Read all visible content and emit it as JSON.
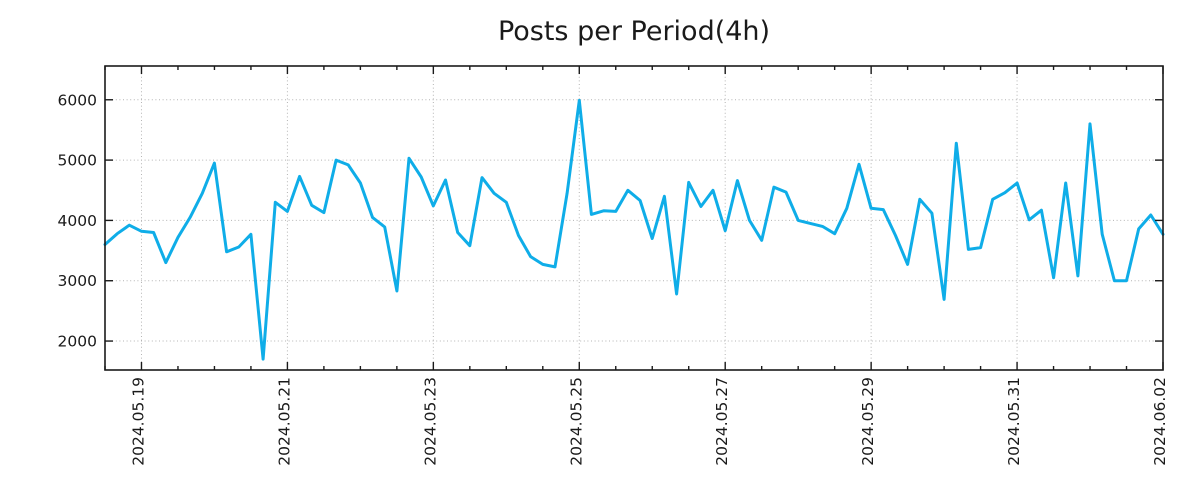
{
  "chart_data": {
    "type": "line",
    "title": "Posts per Period(4h)",
    "series": [
      {
        "name": "posts",
        "values": [
          3600,
          3780,
          3920,
          3820,
          3800,
          3300,
          3720,
          4050,
          4450,
          4950,
          3480,
          3560,
          3770,
          1700,
          4300,
          4150,
          4730,
          4250,
          4130,
          5000,
          4920,
          4620,
          4050,
          3890,
          2830,
          5030,
          4720,
          4240,
          4670,
          3800,
          3580,
          4710,
          4450,
          4300,
          3750,
          3400,
          3270,
          3230,
          4450,
          5990,
          4100,
          4160,
          4150,
          4500,
          4330,
          3700,
          4400,
          2780,
          4630,
          4230,
          4500,
          3830,
          4660,
          4000,
          3670,
          4550,
          4470,
          4000,
          3950,
          3900,
          3780,
          4200,
          4930,
          4200,
          4180,
          3750,
          3270,
          4350,
          4120,
          2690,
          5280,
          3520,
          3550,
          4350,
          4460,
          4620,
          4010,
          4170,
          3050,
          4620,
          3080,
          5600,
          3770,
          3000,
          3000,
          3860,
          4090,
          3770
        ]
      }
    ],
    "points_per_day": 6,
    "x_tick_labels": [
      "2024.05.19",
      "2024.05.21",
      "2024.05.23",
      "2024.05.25",
      "2024.05.27",
      "2024.05.29",
      "2024.05.31",
      "2024.06.02"
    ],
    "x_tick_indices": [
      3,
      15,
      27,
      39,
      51,
      63,
      75,
      87
    ],
    "x_minor_tick_every_points": 3,
    "y_ticks": [
      2000,
      3000,
      4000,
      5000,
      6000
    ],
    "ylim": [
      1520,
      6560
    ],
    "grid": "dotted",
    "legend": "none",
    "colors": {
      "line": "#0fade8",
      "grid": "#b4b4b4",
      "axis": "#1a1a1a",
      "text": "#1a1a1a",
      "background": "#ffffff"
    }
  }
}
